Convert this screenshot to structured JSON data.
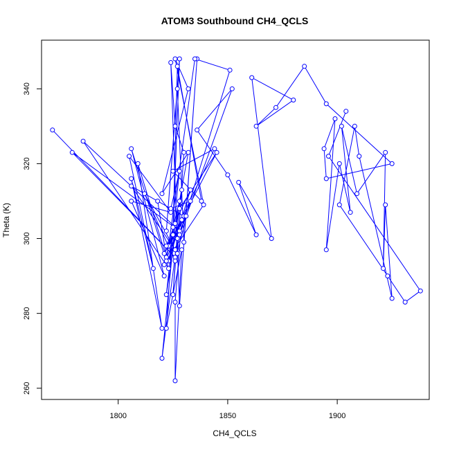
{
  "chart_data": {
    "type": "line",
    "title": "ATOM3 Southbound CH4_QCLS",
    "xlabel": "CH4_QCLS",
    "ylabel": "Theta (K)",
    "xlim": [
      1765,
      1942
    ],
    "ylim": [
      257,
      353
    ],
    "xticks": [
      1800,
      1850,
      1900
    ],
    "yticks": [
      260,
      280,
      300,
      320,
      340
    ],
    "grid": false,
    "legend": "none",
    "colors": {
      "series": "#0000ff",
      "axes": "#000000"
    },
    "marker": "open-circle",
    "series": [
      {
        "name": "",
        "x": [
          1770,
          1826,
          1779,
          1828,
          1784,
          1823,
          1806,
          1821,
          1806,
          1824,
          1805,
          1816,
          1806,
          1820,
          1809,
          1822,
          1818,
          1830,
          1806,
          1826,
          1812,
          1826,
          1833,
          1824,
          1828,
          1822,
          1829,
          1827,
          1830,
          1826,
          1824,
          1828,
          1836,
          1830,
          1827,
          1822,
          1828,
          1825,
          1827,
          1838,
          1825,
          1844,
          1823,
          1828,
          1845,
          1821,
          1831,
          1822,
          1826,
          1820,
          1827,
          1825,
          1828,
          1821,
          1829,
          1826,
          1826,
          1829,
          1822,
          1825,
          1833,
          1823,
          1832,
          1820,
          1832,
          1826,
          1839,
          1822,
          1835,
          1851,
          1828,
          1852,
          1836,
          1850,
          1863,
          1855,
          1870,
          1861,
          1880,
          1863,
          1872,
          1885,
          1895,
          1925,
          1895,
          1894,
          1899,
          1895,
          1901,
          1906,
          1902,
          1909,
          1922,
          1921,
          1922,
          1925,
          1910,
          1908,
          1901,
          1923,
          1931,
          1938,
          1896,
          1904
        ],
        "y": [
          329,
          295,
          323,
          302,
          326,
          292,
          324,
          290,
          310,
          307,
          322,
          292,
          316,
          276,
          320,
          295,
          310,
          306,
          314,
          297,
          312,
          294,
          310,
          308,
          318,
          285,
          313,
          296,
          323,
          330,
          347,
          282,
          348,
          299,
          340,
          302,
          348,
          301,
          346,
          310,
          318,
          324,
          298,
          308,
          323,
          296,
          306,
          298,
          304,
          268,
          300,
          285,
          310,
          293,
          305,
          283,
          262,
          297,
          276,
          303,
          313,
          294,
          323,
          312,
          340,
          348,
          309,
          294,
          348,
          345,
          301,
          340,
          329,
          317,
          301,
          315,
          300,
          343,
          337,
          330,
          335,
          346,
          336,
          320,
          316,
          324,
          332,
          297,
          320,
          307,
          330,
          312,
          323,
          292,
          309,
          284,
          322,
          330,
          309,
          290,
          283,
          286,
          322,
          334
        ]
      }
    ]
  }
}
